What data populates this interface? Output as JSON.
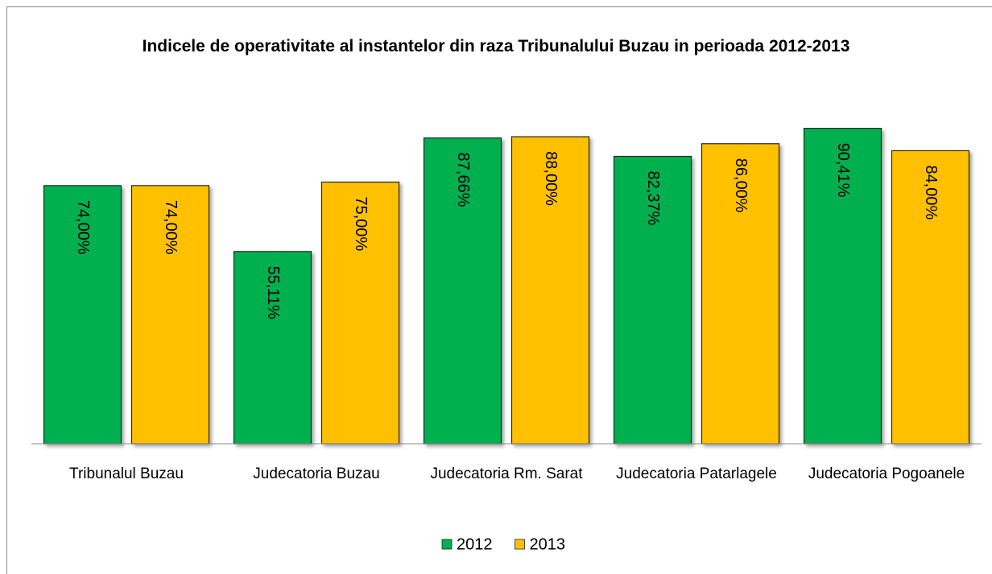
{
  "chart_data": {
    "type": "bar",
    "title": "Indicele de operativitate al instantelor din raza Tribunalului Buzau in perioada 2012-2013",
    "categories": [
      "Tribunalul Buzau",
      "Judecatoria Buzau",
      "Judecatoria Rm. Sarat",
      "Judecatoria Patarlagele",
      "Judecatoria Pogoanele"
    ],
    "series": [
      {
        "name": "2012",
        "color": "#00b050",
        "values": [
          74,
          55.11,
          87.66,
          82.37,
          90.41
        ],
        "value_labels": [
          "74,00%",
          "55,11%",
          "87,66%",
          "82,37%",
          "90,41%"
        ]
      },
      {
        "name": "2013",
        "color": "#ffc000",
        "values": [
          74,
          75,
          88,
          86,
          84
        ],
        "value_labels": [
          "74,00%",
          "75,00%",
          "88,00%",
          "86,00%",
          "84,00%"
        ]
      }
    ],
    "ylim": [
      0,
      100
    ],
    "legend": "bottom"
  }
}
